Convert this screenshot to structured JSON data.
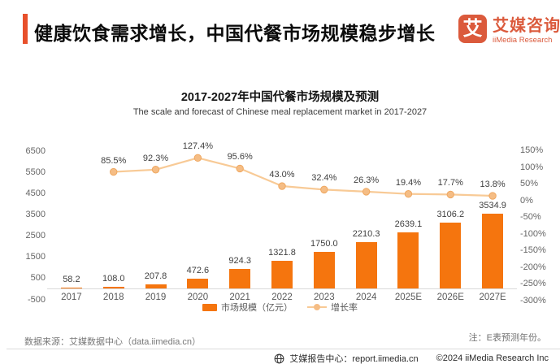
{
  "header": {
    "title": "健康饮食需求增长，中国代餐市场规模稳步增长",
    "logo": {
      "mark": "艾",
      "name_cn": "艾媒咨询",
      "name_en": "iiMedia Research"
    }
  },
  "chart": {
    "title": "2017-2027年中国代餐市场规模及预测",
    "subtitle": "The scale and forecast of Chinese meal replacement market in 2017-2027"
  },
  "chart_data": {
    "type": "bar",
    "title": "2017-2027年中国代餐市场规模及预测",
    "subtitle": "The scale and forecast of Chinese meal replacement market in 2017-2027",
    "categories": [
      "2017",
      "2018",
      "2019",
      "2020",
      "2021",
      "2022",
      "2023",
      "2024",
      "2025E",
      "2026E",
      "2027E"
    ],
    "series": [
      {
        "name": "市场规模（亿元）",
        "type": "bar",
        "color": "#F5750E",
        "values": [
          58.2,
          108.0,
          207.8,
          472.6,
          924.3,
          1321.8,
          1750.0,
          2210.3,
          2639.1,
          3106.2,
          3534.9
        ],
        "labels": [
          "58.2",
          "108.0",
          "207.8",
          "472.6",
          "924.3",
          "1321.8",
          "1750.0",
          "2210.3",
          "2639.1",
          "3106.2",
          "3534.9"
        ]
      },
      {
        "name": "增长率",
        "type": "line",
        "color": "#F8CA96",
        "unit": "%",
        "values": [
          null,
          85.5,
          92.3,
          127.4,
          95.6,
          43.0,
          32.4,
          26.3,
          19.4,
          17.7,
          13.8
        ],
        "labels": [
          null,
          "85.5%",
          "92.3%",
          "127.4%",
          "95.6%",
          "43.0%",
          "32.4%",
          "26.3%",
          "19.4%",
          "17.7%",
          "13.8%"
        ]
      }
    ],
    "left_axis": {
      "min": -500,
      "max": 6500,
      "step": 1000,
      "ticks": [
        "6500",
        "5500",
        "4500",
        "3500",
        "2500",
        "1500",
        "500",
        "-500"
      ]
    },
    "right_axis": {
      "min": -300,
      "max": 150,
      "step": 50,
      "ticks": [
        "150%",
        "100%",
        "50%",
        "0%",
        "-50%",
        "-100%",
        "-150%",
        "-200%",
        "-250%",
        "-300%"
      ]
    },
    "legend_position": "bottom",
    "grid": false
  },
  "legend": {
    "bar_label": "市场规模（亿元）",
    "line_label": "增长率"
  },
  "footer": {
    "source": "数据来源：艾媒数据中心（data.iimedia.cn）",
    "note": "注：E表预测年份。",
    "site": "艾媒报告中心：report.iimedia.cn",
    "copyright": "©2024  iiMedia Research  Inc"
  },
  "colors": {
    "brand": "#DB5A3C",
    "accent": "#E8502B",
    "bar": "#F5750E",
    "line": "#F8CA96",
    "marker": "#F5BD85",
    "marker_stroke": "#EFA75F"
  }
}
